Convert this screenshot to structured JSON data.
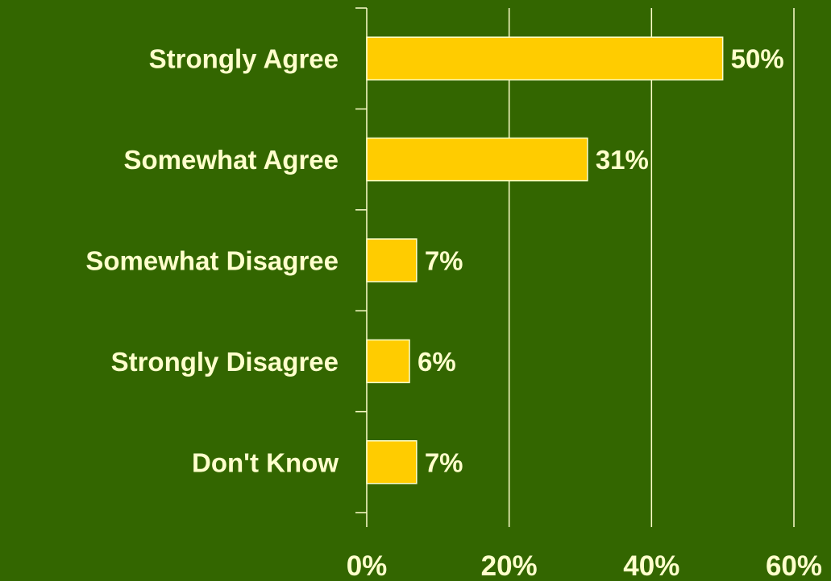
{
  "chart_data": {
    "type": "bar",
    "orientation": "horizontal",
    "categories": [
      "Strongly Agree",
      "Somewhat Agree",
      "Somewhat Disagree",
      "Strongly Disagree",
      "Don't Know"
    ],
    "values": [
      50,
      31,
      7,
      6,
      7
    ],
    "data_labels": [
      "50%",
      "31%",
      "7%",
      "6%",
      "7%"
    ],
    "xlim": [
      0,
      60
    ],
    "x_ticks": [
      0,
      20,
      40,
      60
    ],
    "x_tick_labels": [
      "0%",
      "20%",
      "40%",
      "60%"
    ],
    "title": "",
    "xlabel": "",
    "ylabel": "",
    "grid": "vertical",
    "legend": "none"
  },
  "colors": {
    "background": "#336600",
    "bar_fill": "#FFCC00",
    "bar_stroke": "#FFFFCC",
    "text": "#FFFFCC",
    "grid": "#FFFFCC"
  }
}
